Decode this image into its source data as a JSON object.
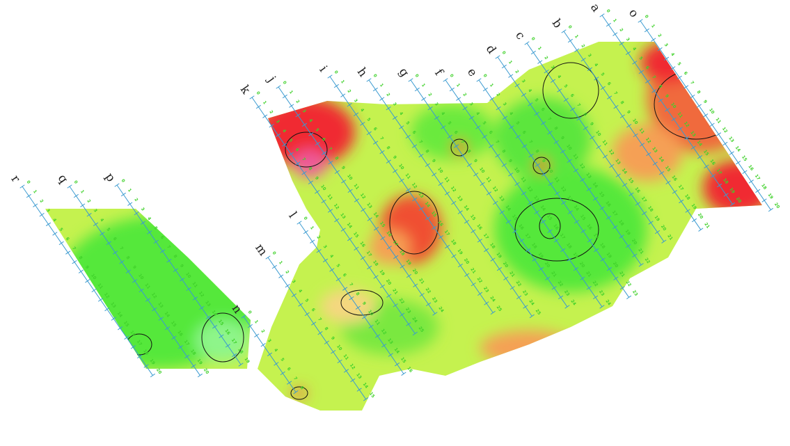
{
  "lines": [
    {
      "label": "o",
      "ticks": [
        0,
        1,
        2,
        3,
        4,
        5,
        6,
        7,
        8,
        9,
        10,
        11,
        12,
        13,
        14,
        15,
        16,
        17,
        18,
        19,
        20
      ]
    },
    {
      "label": "a",
      "ticks": [
        0,
        1,
        2,
        3,
        4,
        5,
        6,
        7,
        8,
        9,
        10,
        11,
        12,
        13,
        14,
        15,
        16,
        17,
        18,
        19,
        20
      ]
    },
    {
      "label": "b",
      "ticks": [
        0,
        1,
        2,
        3,
        4,
        5,
        6,
        7,
        8,
        9,
        10,
        11,
        12,
        13,
        14,
        15,
        16,
        17,
        18,
        19,
        20,
        21
      ]
    },
    {
      "label": "c",
      "ticks": [
        0,
        1,
        2,
        3,
        4,
        5,
        6,
        7,
        8,
        9,
        10,
        11,
        12,
        13,
        14,
        15,
        16,
        17,
        18,
        19,
        20,
        21
      ]
    },
    {
      "label": "d",
      "ticks": [
        0,
        1,
        2,
        3,
        4,
        5,
        6,
        7,
        8,
        9,
        10,
        11,
        12,
        13,
        14,
        15,
        16,
        17,
        18,
        19,
        20,
        21,
        22
      ]
    },
    {
      "label": "e",
      "ticks": [
        0,
        1,
        2,
        3,
        4,
        5,
        6,
        7,
        8,
        9,
        10,
        11,
        12,
        13,
        14,
        15,
        16,
        17,
        18,
        19,
        20,
        21,
        22,
        23
      ]
    },
    {
      "label": "f",
      "ticks": [
        0,
        1,
        2,
        3,
        4,
        5,
        6,
        7,
        8,
        9,
        10,
        11,
        12,
        13,
        14,
        15,
        16,
        17,
        18,
        19,
        20,
        21,
        22,
        23,
        24
      ]
    },
    {
      "label": "g",
      "ticks": [
        0,
        1,
        2,
        3,
        4,
        5,
        6,
        7,
        8,
        9,
        10,
        11,
        12,
        13,
        14,
        15,
        16,
        17,
        18,
        19,
        20,
        21,
        22,
        23,
        24
      ]
    },
    {
      "label": "h",
      "ticks": [
        0,
        1,
        2,
        3,
        4,
        5,
        6,
        7,
        8,
        9,
        10,
        11,
        12,
        13,
        14,
        15,
        16,
        17,
        18,
        19,
        20,
        21,
        22,
        23,
        24,
        25
      ]
    },
    {
      "label": "i",
      "ticks": [
        0,
        1,
        2,
        3,
        4,
        5,
        6,
        7,
        8,
        9,
        10,
        11,
        12,
        13,
        14,
        15,
        16,
        17,
        18,
        19,
        20,
        21,
        22,
        23,
        24,
        25
      ]
    },
    {
      "label": "j",
      "ticks": [
        0,
        1,
        2,
        3,
        4,
        5,
        6,
        7,
        8,
        9,
        10,
        11,
        12,
        13,
        14,
        15,
        16,
        17,
        18,
        19,
        20,
        21,
        22,
        23,
        24
      ]
    },
    {
      "label": "k",
      "ticks": [
        0,
        1,
        2,
        3,
        4,
        5,
        6,
        7,
        8,
        9,
        10,
        11,
        12,
        13,
        14,
        15,
        16,
        17,
        18,
        19,
        20,
        21,
        22,
        23,
        24,
        25
      ]
    },
    {
      "label": "l",
      "ticks": [
        0,
        1,
        2,
        3,
        4,
        5,
        6,
        7,
        8,
        9,
        10,
        11,
        12,
        13,
        14,
        15,
        16
      ]
    },
    {
      "label": "m",
      "ticks": [
        0,
        1,
        2,
        3,
        4,
        5,
        6,
        7,
        8,
        9,
        10,
        11,
        12,
        13,
        14,
        15
      ]
    },
    {
      "label": "n",
      "ticks": [
        0,
        1,
        2,
        3,
        4,
        5,
        6,
        7,
        8
      ]
    },
    {
      "label": "p",
      "ticks": [
        0,
        1,
        2,
        3,
        4,
        5,
        6,
        7,
        8,
        9,
        10,
        11,
        12,
        13,
        14,
        15,
        16,
        17,
        18,
        19
      ]
    },
    {
      "label": "q",
      "ticks": [
        0,
        1,
        2,
        3,
        4,
        5,
        6,
        7,
        8,
        9,
        10,
        11,
        12,
        13,
        14,
        15,
        16,
        17,
        18,
        19,
        20
      ]
    },
    {
      "label": "r",
      "ticks": [
        0,
        1,
        2,
        3,
        4,
        5,
        6,
        7,
        8,
        9,
        10,
        11,
        12,
        13,
        14,
        15,
        16,
        17,
        18,
        19,
        20
      ]
    }
  ]
}
